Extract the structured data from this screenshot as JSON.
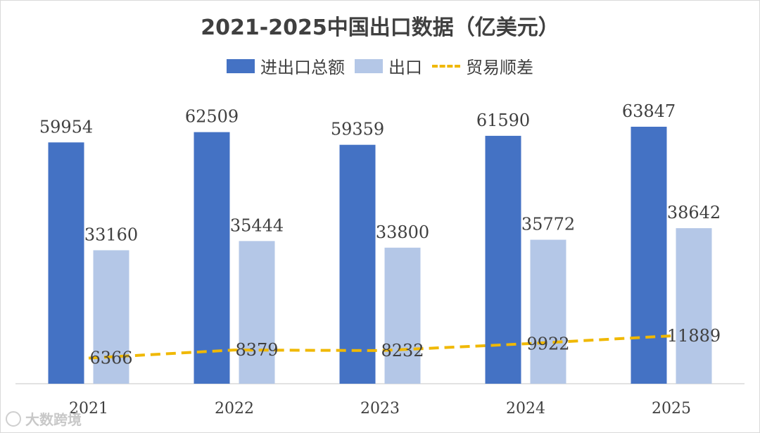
{
  "chart_data": {
    "type": "bar",
    "title": "2021-2025中国出口数据（亿美元）",
    "categories": [
      "2021",
      "2022",
      "2023",
      "2024",
      "2025"
    ],
    "series": [
      {
        "name": "进出口总额",
        "kind": "bar",
        "color": "#4472c4",
        "values": [
          59954,
          62509,
          59359,
          61590,
          63847
        ]
      },
      {
        "name": "出口",
        "kind": "bar",
        "color": "#b4c7e7",
        "values": [
          33160,
          35444,
          33800,
          35772,
          38642
        ]
      },
      {
        "name": "贸易顺差",
        "kind": "line",
        "style": "dashed",
        "color": "#f0b800",
        "values": [
          6366,
          8379,
          8232,
          9922,
          11889
        ]
      }
    ],
    "ylim": [
      0,
      70000
    ],
    "xlabel": "",
    "ylabel": "",
    "grid": false,
    "legend_position": "top"
  },
  "watermark": {
    "text": "大数跨境"
  }
}
